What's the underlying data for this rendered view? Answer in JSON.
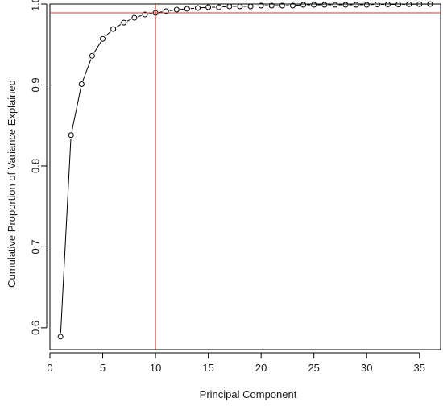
{
  "chart_data": {
    "type": "scatter",
    "title": "",
    "xlabel": "Principal Component",
    "ylabel": "Cumulative Proportion of Variance Explained",
    "xlim": [
      0,
      37
    ],
    "ylim": [
      0.573,
      1.0
    ],
    "xticks": [
      0,
      5,
      10,
      15,
      20,
      25,
      30,
      35
    ],
    "yticks": [
      0.6,
      0.7,
      0.8,
      0.9,
      1.0
    ],
    "xtick_labels": [
      "0",
      "5",
      "10",
      "15",
      "20",
      "25",
      "30",
      "35"
    ],
    "ytick_labels": [
      "0.6",
      "0.7",
      "0.8",
      "0.9",
      "1.0"
    ],
    "grid": false,
    "connected_line": true,
    "x": [
      1,
      2,
      3,
      4,
      5,
      6,
      7,
      8,
      9,
      10,
      11,
      12,
      13,
      14,
      15,
      16,
      17,
      18,
      19,
      20,
      21,
      22,
      23,
      24,
      25,
      26,
      27,
      28,
      29,
      30,
      31,
      32,
      33,
      34,
      35,
      36
    ],
    "y": [
      0.589,
      0.838,
      0.901,
      0.936,
      0.957,
      0.969,
      0.977,
      0.983,
      0.987,
      0.989,
      0.991,
      0.993,
      0.994,
      0.995,
      0.996,
      0.996,
      0.997,
      0.997,
      0.997,
      0.998,
      0.998,
      0.998,
      0.998,
      0.999,
      0.999,
      0.999,
      0.999,
      0.999,
      0.999,
      0.999,
      0.9995,
      0.9995,
      0.9995,
      0.9997,
      0.9998,
      1.0
    ],
    "reference_lines": [
      {
        "orientation": "vertical",
        "value": 10,
        "color": "#c0392b"
      },
      {
        "orientation": "horizontal",
        "value": 0.989,
        "color": "#c0392b"
      }
    ],
    "colors": {
      "points": "#000000",
      "line": "#000000",
      "axis": "#000000"
    }
  }
}
